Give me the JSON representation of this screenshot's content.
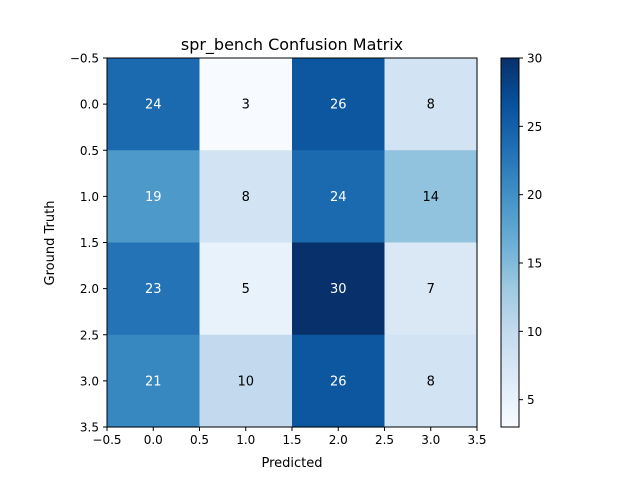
{
  "chart_data": {
    "type": "heatmap",
    "title": "spr_bench Confusion Matrix",
    "xlabel": "Predicted",
    "ylabel": "Ground Truth",
    "colormap": "Blues",
    "matrix": [
      [
        24,
        3,
        26,
        8
      ],
      [
        19,
        8,
        24,
        14
      ],
      [
        23,
        5,
        30,
        7
      ],
      [
        21,
        10,
        26,
        8
      ]
    ],
    "xlim": [
      -0.5,
      3.5
    ],
    "ylim": [
      3.5,
      -0.5
    ],
    "x_ticks": [
      "−0.5",
      "0.0",
      "0.5",
      "1.0",
      "1.5",
      "2.0",
      "2.5",
      "3.0",
      "3.5"
    ],
    "y_ticks": [
      "−0.5",
      "0.0",
      "0.5",
      "1.0",
      "1.5",
      "2.0",
      "2.5",
      "3.0",
      "3.5"
    ],
    "colorbar": {
      "min": 3,
      "max": 30,
      "ticks": [
        5,
        10,
        15,
        20,
        25,
        30
      ],
      "tick_labels": [
        "5",
        "10",
        "15",
        "20",
        "25",
        "30"
      ]
    }
  }
}
